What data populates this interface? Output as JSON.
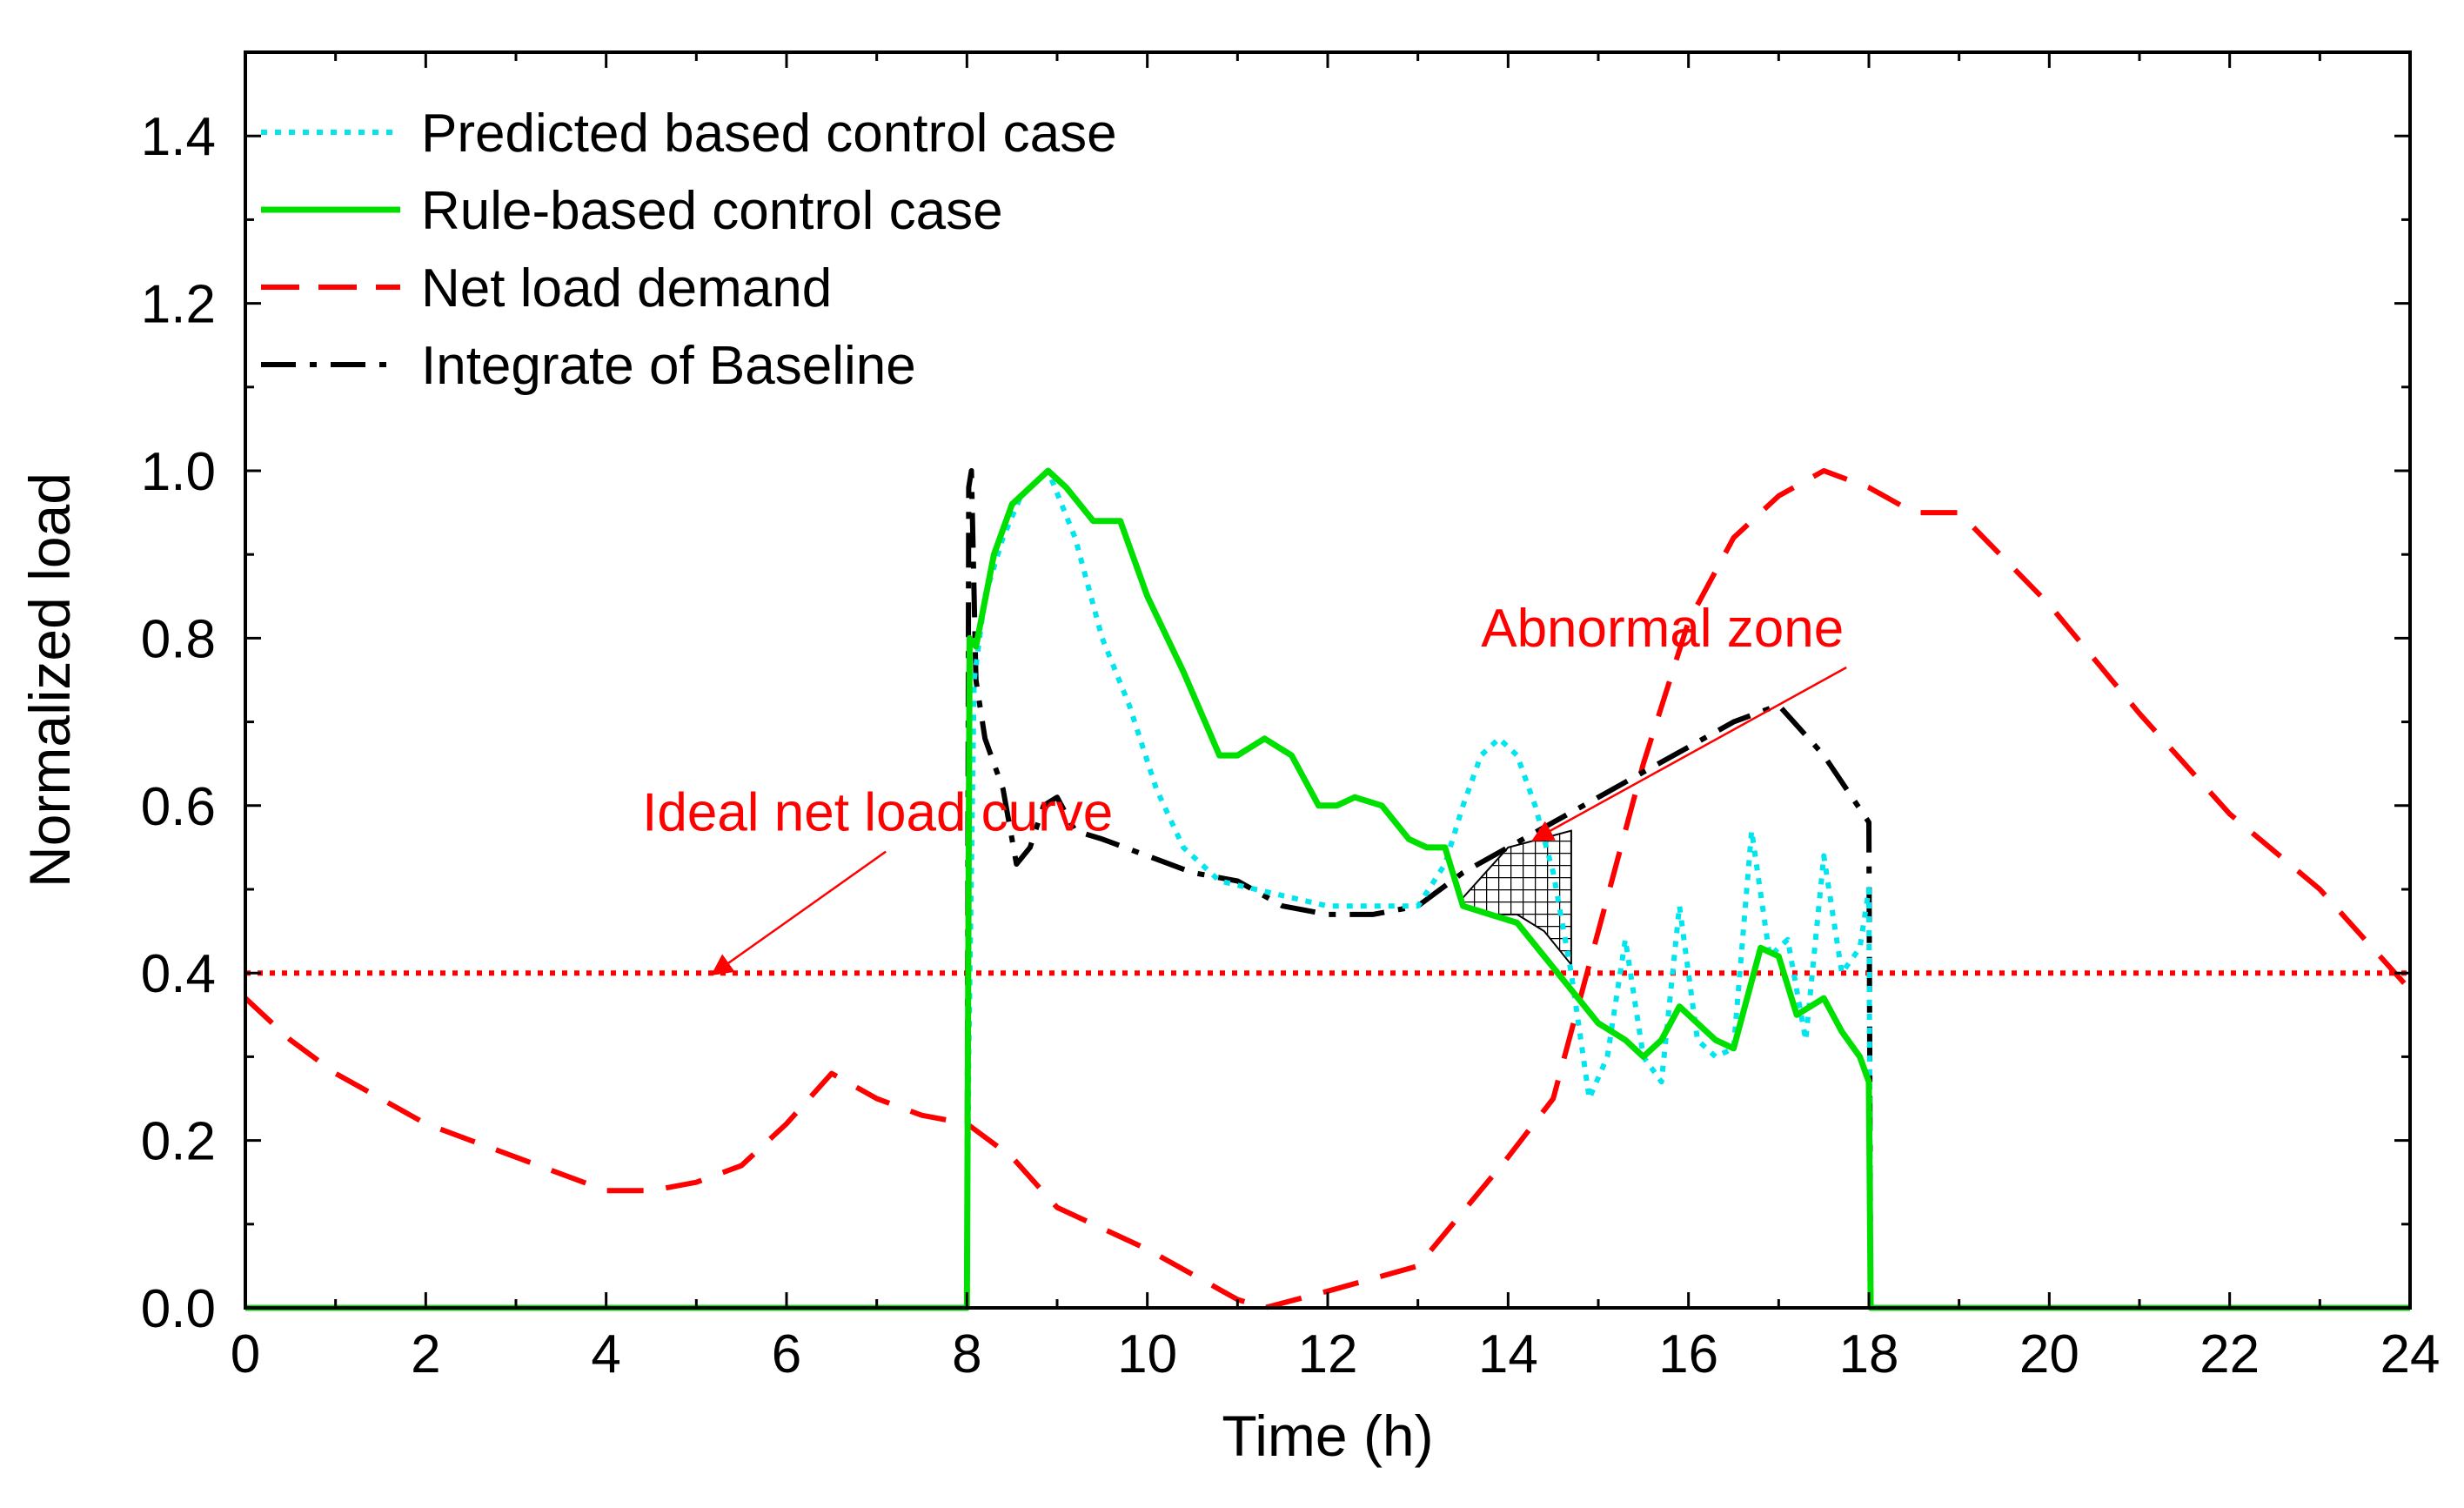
{
  "chart_data": {
    "type": "line",
    "title": "",
    "xlabel": "Time (h)",
    "ylabel": "Normalized load",
    "xlim": [
      0,
      24
    ],
    "ylim": [
      0,
      1.5
    ],
    "x_ticks": [
      0,
      2,
      4,
      6,
      8,
      10,
      12,
      14,
      16,
      18,
      20,
      22,
      24
    ],
    "x_tick_labels": [
      "0",
      "2",
      "4",
      "6",
      "8",
      "10",
      "12",
      "14",
      "16",
      "18",
      "20",
      "22",
      "24"
    ],
    "y_ticks": [
      0,
      0.2,
      0.4,
      0.6,
      0.8,
      1.0,
      1.2,
      1.4
    ],
    "y_tick_labels": [
      "0.0",
      "0.2",
      "0.4",
      "0.6",
      "0.8",
      "1.0",
      "1.2",
      "1.4"
    ],
    "grid": false,
    "legend_position": "top-left",
    "series": [
      {
        "name": "Predicted based control case",
        "color": "#00e5ee",
        "style": "dotted",
        "x": [
          0,
          8.0,
          8.02,
          8.08,
          8.2,
          8.4,
          8.6,
          8.9,
          9.2,
          9.5,
          9.8,
          10.1,
          10.4,
          10.8,
          11.2,
          11.6,
          12.0,
          12.5,
          13.0,
          13.3,
          13.5,
          13.7,
          13.9,
          14.1,
          14.3,
          14.5,
          14.7,
          14.9,
          15.1,
          15.3,
          15.5,
          15.7,
          15.9,
          16.1,
          16.3,
          16.5,
          16.7,
          16.9,
          17.1,
          17.3,
          17.5,
          17.7,
          17.9,
          18.0,
          18.02,
          24
        ],
        "y": [
          0,
          0,
          0.3,
          0.75,
          0.85,
          0.92,
          0.97,
          1.0,
          0.92,
          0.8,
          0.72,
          0.62,
          0.55,
          0.51,
          0.5,
          0.49,
          0.48,
          0.48,
          0.48,
          0.53,
          0.6,
          0.66,
          0.68,
          0.66,
          0.6,
          0.52,
          0.4,
          0.25,
          0.3,
          0.44,
          0.3,
          0.27,
          0.48,
          0.32,
          0.3,
          0.31,
          0.57,
          0.42,
          0.44,
          0.32,
          0.54,
          0.4,
          0.43,
          0.5,
          0,
          0
        ]
      },
      {
        "name": "Rule-based control case",
        "color": "#00e000",
        "style": "solid",
        "x": [
          0,
          8.0,
          8.03,
          8.1,
          8.3,
          8.5,
          8.8,
          8.9,
          9.1,
          9.4,
          9.7,
          10.0,
          10.4,
          10.8,
          11.0,
          11.3,
          11.6,
          11.9,
          12.1,
          12.3,
          12.6,
          12.9,
          13.1,
          13.3,
          13.5,
          13.8,
          14.1,
          14.4,
          14.7,
          15.0,
          15.3,
          15.5,
          15.7,
          15.9,
          16.1,
          16.3,
          16.5,
          16.8,
          17.0,
          17.2,
          17.5,
          17.7,
          17.9,
          18.0,
          18.02,
          24
        ],
        "y": [
          0,
          0,
          0.8,
          0.79,
          0.9,
          0.96,
          0.99,
          1.0,
          0.98,
          0.94,
          0.94,
          0.85,
          0.76,
          0.66,
          0.66,
          0.68,
          0.66,
          0.6,
          0.6,
          0.61,
          0.6,
          0.56,
          0.55,
          0.55,
          0.48,
          0.47,
          0.46,
          0.42,
          0.38,
          0.34,
          0.32,
          0.3,
          0.32,
          0.36,
          0.34,
          0.32,
          0.31,
          0.43,
          0.42,
          0.35,
          0.37,
          0.33,
          0.3,
          0.27,
          0,
          0
        ]
      },
      {
        "name": "Net load demand",
        "color": "#ff0000",
        "style": "dashed",
        "x": [
          0,
          0.5,
          1.0,
          2.0,
          3.0,
          4.0,
          4.5,
          5.0,
          5.5,
          6.0,
          6.5,
          7.0,
          7.5,
          8.0,
          8.5,
          9.0,
          10.0,
          11.0,
          11.3,
          12.0,
          13.0,
          14.0,
          14.5,
          15.0,
          15.5,
          16.0,
          16.5,
          17.0,
          17.5,
          18.0,
          18.5,
          19.0,
          20.0,
          21.0,
          22.0,
          23.0,
          24.0
        ],
        "y": [
          0.37,
          0.32,
          0.28,
          0.22,
          0.18,
          0.14,
          0.14,
          0.15,
          0.17,
          0.22,
          0.28,
          0.25,
          0.23,
          0.22,
          0.18,
          0.12,
          0.07,
          0.01,
          0.0,
          0.02,
          0.05,
          0.18,
          0.25,
          0.45,
          0.65,
          0.82,
          0.92,
          0.97,
          1.0,
          0.98,
          0.95,
          0.95,
          0.84,
          0.71,
          0.59,
          0.5,
          0.38
        ]
      },
      {
        "name": "Integrate of Baseline",
        "color": "#000000",
        "style": "dashdot",
        "x": [
          0,
          8.0,
          8.02,
          8.05,
          8.1,
          8.2,
          8.4,
          8.55,
          8.7,
          8.85,
          9.0,
          9.2,
          9.5,
          10.0,
          10.5,
          11.0,
          11.5,
          12.0,
          12.5,
          13.0,
          13.5,
          14.0,
          14.5,
          15.0,
          15.5,
          16.0,
          16.5,
          17.0,
          17.5,
          18.0,
          18.02,
          24
        ],
        "y": [
          0,
          0,
          0.98,
          1.0,
          0.75,
          0.68,
          0.62,
          0.53,
          0.55,
          0.6,
          0.61,
          0.57,
          0.56,
          0.54,
          0.52,
          0.51,
          0.48,
          0.47,
          0.47,
          0.48,
          0.52,
          0.55,
          0.58,
          0.61,
          0.64,
          0.67,
          0.7,
          0.72,
          0.66,
          0.58,
          0,
          0
        ]
      }
    ],
    "reference_lines": [
      {
        "name": "Ideal net load curve",
        "y": 0.4,
        "color": "#ff0000",
        "style": "dotted"
      }
    ],
    "hatched_region": {
      "label": "Abnormal zone",
      "upper_x": [
        13.5,
        14.0,
        14.7
      ],
      "upper_y": [
        0.49,
        0.55,
        0.57
      ],
      "lower_x": [
        14.7,
        14.4,
        14.1,
        13.8,
        13.5
      ],
      "lower_y": [
        0.41,
        0.45,
        0.47,
        0.47,
        0.48
      ]
    },
    "annotations": [
      {
        "text": "Abnormal zone",
        "color": "#ff0000",
        "text_x": 13.7,
        "text_y": 0.79,
        "arrow_to_x": 14.3,
        "arrow_to_y": 0.56
      },
      {
        "text": "Ideal net load curve",
        "color": "#ff0000",
        "text_x": 4.4,
        "text_y": 0.57,
        "arrow_to_x": 5.2,
        "arrow_to_y": 0.4
      }
    ]
  }
}
